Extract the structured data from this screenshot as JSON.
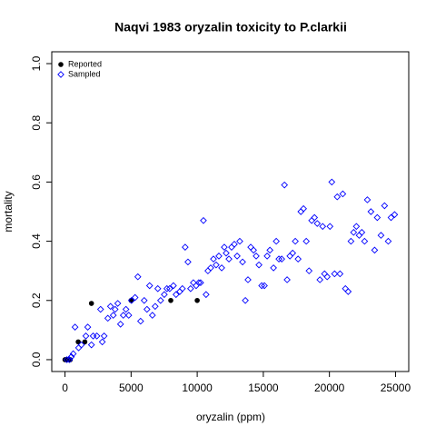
{
  "chart_data": {
    "type": "scatter",
    "title": "Naqvi 1983 oryzalin toxicity to P.clarkii",
    "x_label": "oryzalin (ppm)",
    "y_label": "mortality",
    "xlim": [
      -1000,
      26000
    ],
    "ylim": [
      -0.04,
      1.04
    ],
    "xticks": [
      0,
      5000,
      10000,
      15000,
      20000,
      25000
    ],
    "yticks": [
      {
        "value": 0,
        "label": "0.0"
      },
      {
        "value": 0.2,
        "label": "0.2"
      },
      {
        "value": 0.4,
        "label": "0.4"
      },
      {
        "value": 0.6,
        "label": "0.6"
      },
      {
        "value": 0.8,
        "label": "0.8"
      },
      {
        "value": 1,
        "label": "1.0"
      }
    ],
    "legend": "top-left",
    "series": [
      {
        "name": "Reported",
        "color": "#000000",
        "marker": "filled-circle",
        "x": [
          0,
          100,
          200,
          300,
          400,
          1000,
          1500,
          2000,
          5000,
          8000,
          10000
        ],
        "values": [
          0,
          0,
          0,
          0,
          0,
          0.06,
          0.06,
          0.19,
          0.2,
          0.2,
          0.2
        ]
      },
      {
        "name": "Sampled",
        "color": "#0000ff",
        "marker": "open-diamond",
        "x": [
          140,
          340,
          480,
          620,
          760,
          1030,
          1240,
          1580,
          1720,
          2000,
          2130,
          2410,
          2690,
          2820,
          2960,
          3240,
          3440,
          3650,
          3790,
          3990,
          4200,
          4410,
          4610,
          4820,
          5030,
          5300,
          5510,
          5720,
          5990,
          6200,
          6400,
          6610,
          6820,
          7020,
          7230,
          7510,
          7710,
          7920,
          8200,
          8400,
          8680,
          8880,
          9090,
          9300,
          9500,
          9710,
          9920,
          10120,
          10260,
          10470,
          10670,
          10810,
          11020,
          11230,
          11430,
          11640,
          11850,
          12050,
          12190,
          12400,
          12600,
          12810,
          13020,
          13220,
          13430,
          13640,
          13840,
          14050,
          14260,
          14460,
          14670,
          14880,
          15080,
          15290,
          15500,
          15770,
          15980,
          16180,
          16390,
          16600,
          16800,
          17010,
          17220,
          17420,
          17630,
          17840,
          18040,
          18250,
          18460,
          18660,
          18870,
          19080,
          19280,
          19490,
          19630,
          19830,
          20040,
          20180,
          20390,
          20590,
          20800,
          21010,
          21210,
          21420,
          21630,
          21830,
          22040,
          22250,
          22450,
          22660,
          22870,
          23140,
          23420,
          23620,
          23900,
          24170,
          24450,
          24660,
          24930
        ],
        "values": [
          0,
          0,
          0.01,
          0.02,
          0.11,
          0.04,
          0.05,
          0.08,
          0.11,
          0.05,
          0.08,
          0.08,
          0.17,
          0.06,
          0.08,
          0.14,
          0.18,
          0.15,
          0.17,
          0.19,
          0.12,
          0.15,
          0.17,
          0.15,
          0.2,
          0.21,
          0.28,
          0.13,
          0.2,
          0.17,
          0.25,
          0.15,
          0.18,
          0.24,
          0.2,
          0.22,
          0.24,
          0.24,
          0.25,
          0.22,
          0.23,
          0.24,
          0.38,
          0.33,
          0.24,
          0.26,
          0.25,
          0.26,
          0.26,
          0.47,
          0.22,
          0.3,
          0.31,
          0.34,
          0.32,
          0.35,
          0.31,
          0.38,
          0.36,
          0.34,
          0.38,
          0.39,
          0.35,
          0.4,
          0.33,
          0.2,
          0.27,
          0.38,
          0.37,
          0.35,
          0.32,
          0.25,
          0.25,
          0.35,
          0.37,
          0.31,
          0.4,
          0.34,
          0.34,
          0.59,
          0.27,
          0.35,
          0.36,
          0.4,
          0.34,
          0.5,
          0.51,
          0.4,
          0.3,
          0.47,
          0.48,
          0.46,
          0.27,
          0.45,
          0.29,
          0.28,
          0.45,
          0.6,
          0.29,
          0.55,
          0.29,
          0.56,
          0.24,
          0.23,
          0.4,
          0.43,
          0.45,
          0.42,
          0.43,
          0.4,
          0.54,
          0.5,
          0.37,
          0.48,
          0.42,
          0.52,
          0.4,
          0.48,
          0.49
        ]
      }
    ]
  }
}
